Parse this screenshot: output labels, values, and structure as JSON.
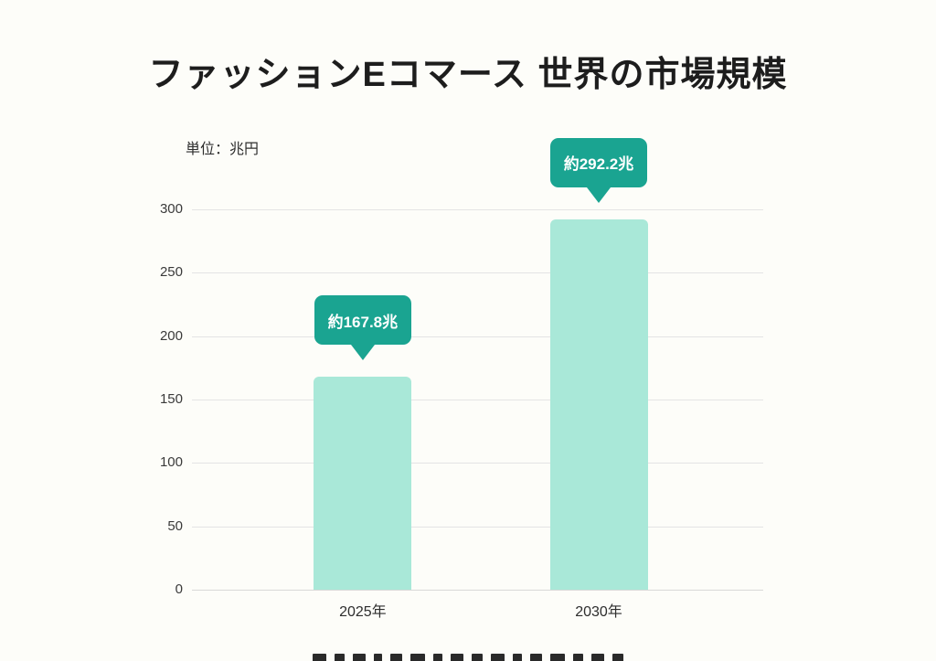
{
  "colors": {
    "background": "#fdfdf9",
    "bar_fill": "#a9e8d8",
    "callout_fill": "#1aa491",
    "callout_text": "#ffffff",
    "gridline": "#e4e4e4",
    "axis_text": "#3a3a3a",
    "title_text": "#1d1d1d"
  },
  "chart_data": {
    "type": "bar",
    "title": "ファッションEコマース 世界の市場規模",
    "unit_label": "単位：兆円",
    "categories": [
      "2025年",
      "2030年"
    ],
    "values": [
      167.8,
      292.2
    ],
    "data_labels": [
      "約167.8兆",
      "約292.2兆"
    ],
    "ylim": [
      0,
      300
    ],
    "yticks": [
      0,
      50,
      100,
      150,
      200,
      250,
      300
    ],
    "grid": "horizontal",
    "legend": "none",
    "bar_corner_radius": 6
  }
}
